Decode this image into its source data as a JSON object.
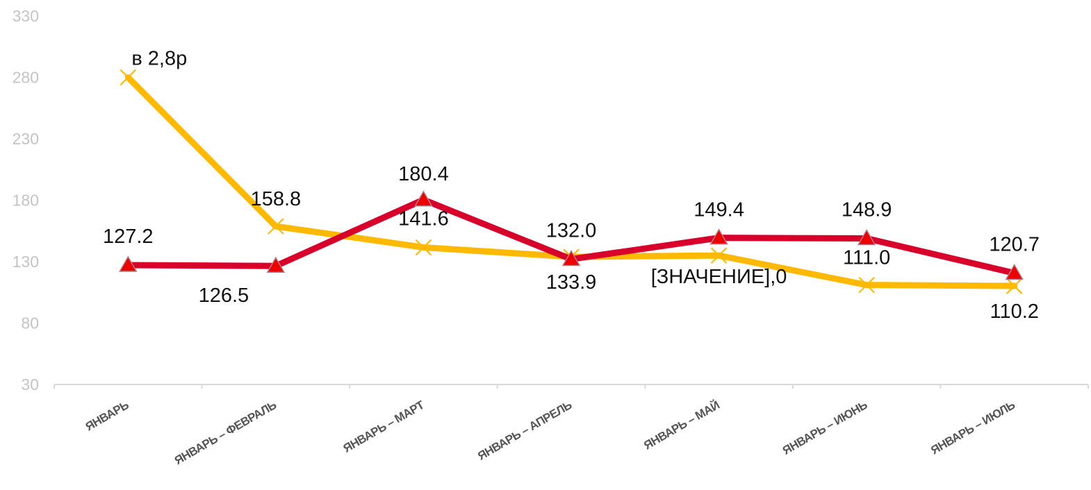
{
  "chart_data": {
    "type": "line",
    "categories": [
      "ЯНВАРЬ",
      "ЯНВАРЬ – ФЕВРАЛЬ",
      "ЯНВАРЬ – МАРТ",
      "ЯНВАРЬ – АПРЕЛЬ",
      "ЯНВАРЬ – МАЙ",
      "ЯНВАРЬ – ИЮНЬ",
      "ЯНВАРЬ – ИЮЛЬ"
    ],
    "ylim": [
      30,
      330
    ],
    "yticks": [
      30,
      80,
      130,
      180,
      230,
      280,
      330
    ],
    "grid": false,
    "legend": "none",
    "series": [
      {
        "color": "#d8002b",
        "marker_color": "#ee0000",
        "marker": "triangle",
        "values": [
          127.2,
          126.5,
          180.4,
          132.0,
          149.4,
          148.9,
          120.7
        ],
        "labels": [
          "127.2",
          "126.5",
          "180.4",
          "132.0",
          "149.4",
          "148.9",
          "120.7"
        ]
      },
      {
        "color": "#ffb900",
        "marker": "x",
        "values": [
          280.0,
          158.8,
          141.6,
          133.9,
          135.0,
          111.0,
          110.2
        ],
        "labels": [
          "в 2,8р",
          "158.8",
          "141.6",
          "133.9",
          "[ЗНАЧЕНИЕ],0",
          "111.0",
          "110.2"
        ]
      }
    ]
  }
}
